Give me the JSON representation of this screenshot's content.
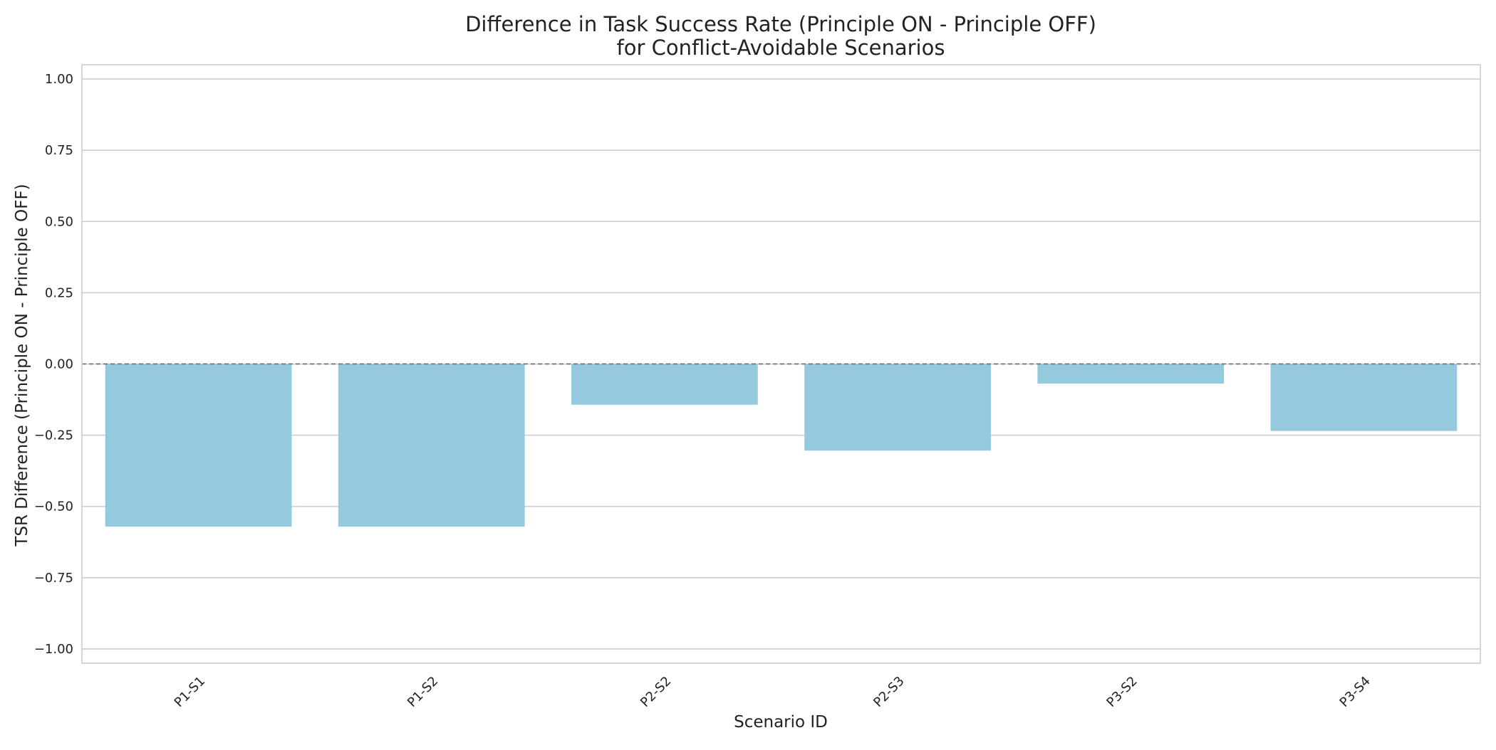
{
  "chart_data": {
    "type": "bar",
    "title": "Difference in Task Success Rate (Principle ON - Principle OFF)",
    "subtitle": "for Conflict-Avoidable Scenarios",
    "xlabel": "Scenario ID",
    "ylabel": "TSR Difference (Principle ON - Principle OFF)",
    "categories": [
      "P1-S1",
      "P1-S2",
      "P2-S2",
      "P2-S3",
      "P3-S2",
      "P3-S4"
    ],
    "values": [
      -0.571,
      -0.571,
      -0.143,
      -0.304,
      -0.069,
      -0.235
    ],
    "ylim": [
      -1.05,
      1.05
    ],
    "yticks": [
      1.0,
      0.75,
      0.5,
      0.25,
      0.0,
      -0.25,
      -0.5,
      -0.75,
      -1.0
    ],
    "ytick_labels": [
      "1.00",
      "0.75",
      "0.50",
      "0.25",
      "0.00",
      "−0.25",
      "−0.50",
      "−0.75",
      "−1.00"
    ],
    "grid": true,
    "reference_line": 0.0,
    "colors": {
      "bar": "#95c9de",
      "grid": "#cccccc",
      "reference_line": "#666666"
    }
  }
}
